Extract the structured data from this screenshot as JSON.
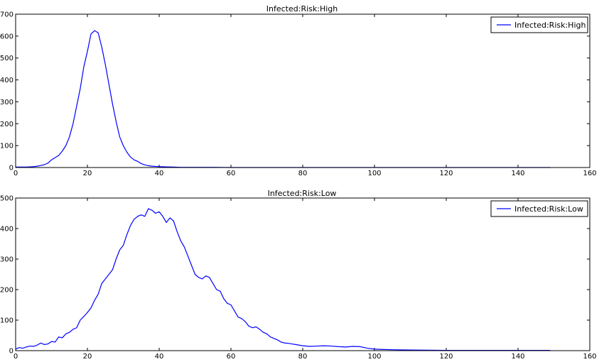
{
  "colors": {
    "series": "#0000ff",
    "axes": "#000000",
    "background": "#ffffff"
  },
  "chart_data": [
    {
      "type": "line",
      "title": "Infected:Risk:High",
      "xlabel": "",
      "ylabel": "",
      "xlim": [
        0,
        160
      ],
      "ylim": [
        0,
        700
      ],
      "xticks": [
        0,
        20,
        40,
        60,
        80,
        100,
        120,
        140,
        160
      ],
      "yticks": [
        0,
        100,
        200,
        300,
        400,
        500,
        600,
        700
      ],
      "grid": false,
      "legend": "top-right",
      "series": [
        {
          "name": "Infected:Risk:High",
          "x": [
            0,
            1,
            2,
            3,
            4,
            5,
            6,
            7,
            8,
            9,
            10,
            11,
            12,
            13,
            14,
            15,
            16,
            17,
            18,
            19,
            20,
            21,
            22,
            23,
            24,
            25,
            26,
            27,
            28,
            29,
            30,
            31,
            32,
            33,
            34,
            35,
            36,
            37,
            38,
            39,
            40,
            42,
            44,
            46,
            48,
            50,
            55,
            60,
            70,
            80,
            90,
            100,
            110,
            120,
            130,
            140,
            149
          ],
          "y": [
            2,
            2,
            2,
            2,
            3,
            4,
            6,
            9,
            13,
            20,
            35,
            45,
            55,
            75,
            100,
            140,
            200,
            280,
            360,
            460,
            530,
            610,
            625,
            615,
            550,
            470,
            380,
            290,
            210,
            140,
            100,
            70,
            48,
            35,
            28,
            18,
            12,
            8,
            6,
            5,
            4,
            3,
            2,
            1,
            1,
            1,
            1,
            0,
            0,
            0,
            0,
            0,
            0,
            0,
            0,
            0,
            0
          ]
        }
      ]
    },
    {
      "type": "line",
      "title": "Infected:Risk:Low",
      "xlabel": "",
      "ylabel": "",
      "xlim": [
        0,
        160
      ],
      "ylim": [
        0,
        500
      ],
      "xticks": [
        0,
        20,
        40,
        60,
        80,
        100,
        120,
        140,
        160
      ],
      "yticks": [
        0,
        100,
        200,
        300,
        400,
        500
      ],
      "grid": false,
      "legend": "top-right",
      "series": [
        {
          "name": "Infected:Risk:Low",
          "x": [
            0,
            1,
            2,
            3,
            4,
            5,
            6,
            7,
            8,
            9,
            10,
            11,
            12,
            13,
            14,
            15,
            16,
            17,
            18,
            19,
            20,
            21,
            22,
            23,
            24,
            25,
            26,
            27,
            28,
            29,
            30,
            31,
            32,
            33,
            34,
            35,
            36,
            37,
            38,
            39,
            40,
            41,
            42,
            43,
            44,
            45,
            46,
            47,
            48,
            49,
            50,
            51,
            52,
            53,
            54,
            55,
            56,
            57,
            58,
            59,
            60,
            61,
            62,
            63,
            64,
            65,
            66,
            67,
            68,
            69,
            70,
            71,
            72,
            73,
            74,
            75,
            76,
            77,
            78,
            79,
            80,
            82,
            84,
            86,
            88,
            90,
            92,
            94,
            96,
            98,
            100,
            102,
            105,
            110,
            120,
            130,
            140,
            149
          ],
          "y": [
            5,
            10,
            8,
            12,
            15,
            14,
            18,
            25,
            20,
            22,
            30,
            28,
            45,
            42,
            55,
            60,
            70,
            75,
            100,
            112,
            125,
            140,
            165,
            185,
            220,
            235,
            250,
            265,
            300,
            330,
            345,
            380,
            410,
            430,
            440,
            445,
            440,
            465,
            460,
            450,
            455,
            440,
            420,
            435,
            425,
            390,
            360,
            340,
            310,
            280,
            250,
            240,
            235,
            245,
            240,
            220,
            200,
            195,
            170,
            155,
            150,
            130,
            110,
            105,
            95,
            80,
            75,
            78,
            70,
            60,
            55,
            45,
            40,
            35,
            28,
            25,
            24,
            22,
            20,
            18,
            16,
            14,
            15,
            16,
            15,
            13,
            12,
            14,
            13,
            8,
            5,
            4,
            3,
            2,
            1,
            1,
            1,
            1
          ]
        }
      ]
    }
  ]
}
